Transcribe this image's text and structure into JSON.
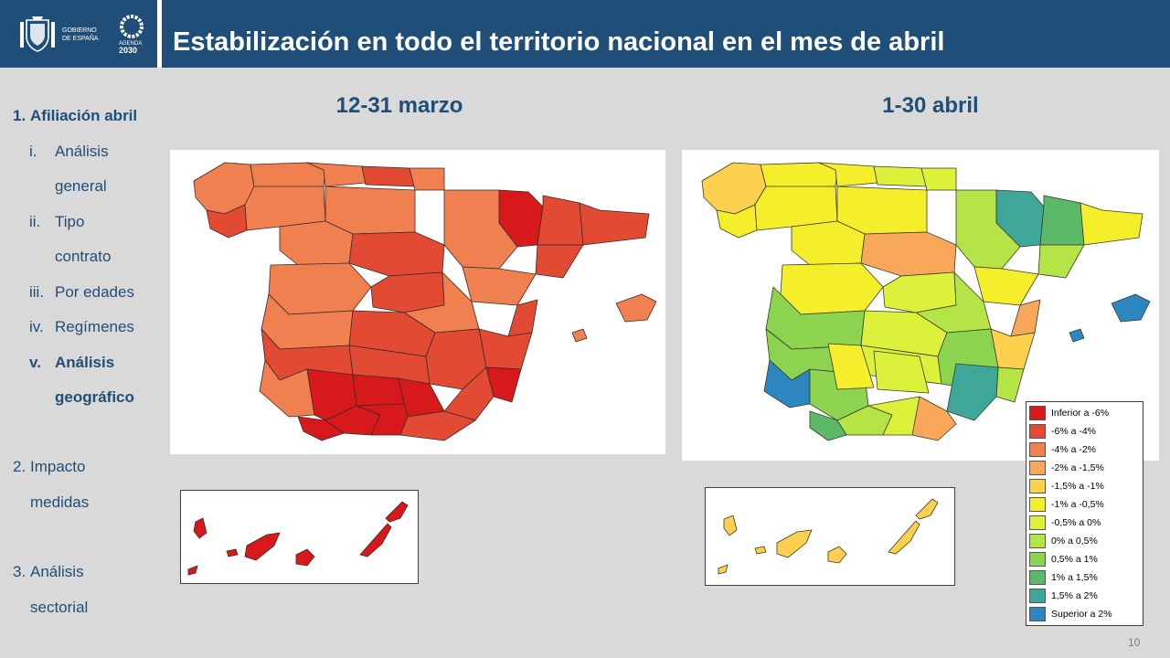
{
  "header": {
    "logo_government_line1": "GOBIERNO",
    "logo_government_line2": "DE ESPAÑA",
    "logo_agenda_line1": "AGENDA",
    "logo_agenda_line2": "2030",
    "title": "Estabilización en todo el territorio nacional en el mes de abril"
  },
  "sidebar": {
    "items": [
      {
        "num": "1.",
        "label": "Afiliación abril",
        "bold": true
      },
      {
        "num": "i.",
        "label": "Análisis",
        "bold": false
      },
      {
        "num": "",
        "label": "general",
        "bold": false
      },
      {
        "num": "ii.",
        "label": "Tipo",
        "bold": false
      },
      {
        "num": "",
        "label": "contrato",
        "bold": false
      },
      {
        "num": "iii.",
        "label": "Por edades",
        "bold": false
      },
      {
        "num": "iv.",
        "label": "Regímenes",
        "bold": false
      },
      {
        "num": "v.",
        "label": "Análisis",
        "bold": true
      },
      {
        "num": "",
        "label": "geográfico",
        "bold": true
      },
      {
        "num": "2.",
        "label": "Impacto",
        "bold": false
      },
      {
        "num": "",
        "label": "medidas",
        "bold": false
      },
      {
        "num": "3.",
        "label": "Análisis",
        "bold": false
      },
      {
        "num": "",
        "label": "sectorial",
        "bold": false
      }
    ]
  },
  "maps": {
    "left_heading": "12-31 marzo",
    "right_heading": "1-30 abril"
  },
  "legend": {
    "items": [
      {
        "label": "Inferior a -6%",
        "color": "#d7191c"
      },
      {
        "label": "-6% a -4%",
        "color": "#e34a33"
      },
      {
        "label": "-4% a -2%",
        "color": "#f08050"
      },
      {
        "label": "-2% a -1,5%",
        "color": "#f9a85a"
      },
      {
        "label": "-1,5% a -1%",
        "color": "#fdd04e"
      },
      {
        "label": "-1% a -0,5%",
        "color": "#f5ee2a"
      },
      {
        "label": "-0,5% a 0%",
        "color": "#dcf23a"
      },
      {
        "label": "0% a 0,5%",
        "color": "#b4e446"
      },
      {
        "label": "0,5% a 1%",
        "color": "#8cd450"
      },
      {
        "label": "1% a 1,5%",
        "color": "#5cb96a"
      },
      {
        "label": "1,5% a 2%",
        "color": "#3ea79a"
      },
      {
        "label": "Superior a 2%",
        "color": "#2e86c1"
      }
    ]
  },
  "colors": {
    "brand_blue": "#1f4e79"
  },
  "page_number": "10"
}
